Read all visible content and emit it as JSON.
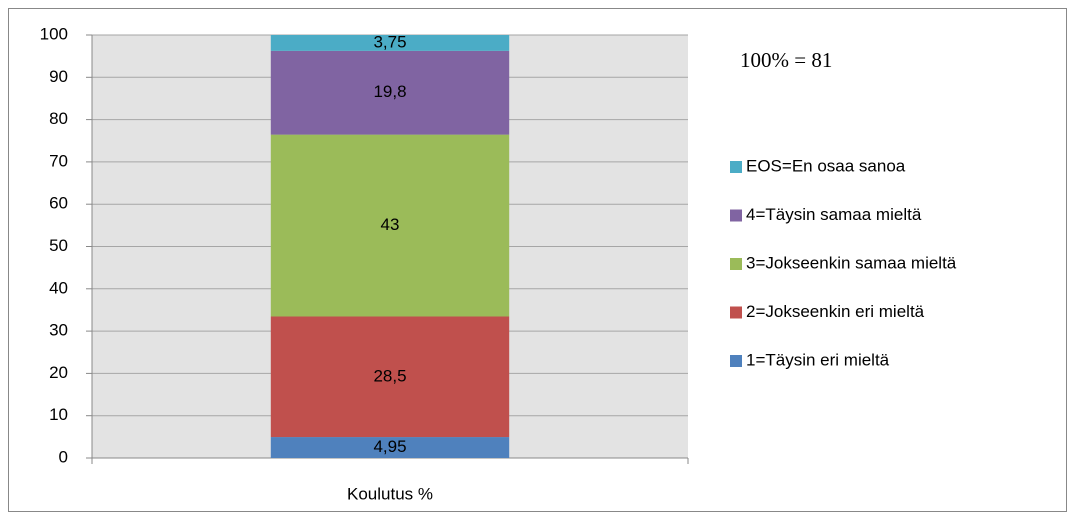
{
  "chart_data": {
    "type": "stacked_bar",
    "categories": [
      "Koulutus %"
    ],
    "series": [
      {
        "name": "1=Täysin eri mieltä",
        "color": "#4f81bd",
        "values": [
          4.95
        ],
        "value_labels": [
          "4,95"
        ]
      },
      {
        "name": "2=Jokseenkin eri mieltä",
        "color": "#c0504d",
        "values": [
          28.5
        ],
        "value_labels": [
          "28,5"
        ]
      },
      {
        "name": "3=Jokseenkin samaa mieltä",
        "color": "#9bbb59",
        "values": [
          43
        ],
        "value_labels": [
          "43"
        ]
      },
      {
        "name": "4=Täysin samaa mieltä",
        "color": "#8064a2",
        "values": [
          19.8
        ],
        "value_labels": [
          "19,8"
        ]
      },
      {
        "name": "EOS=En osaa sanoa",
        "color": "#4bacc6",
        "values": [
          3.75
        ],
        "value_labels": [
          "3,75"
        ]
      }
    ],
    "annotation": "100% = 81",
    "ylim": [
      0,
      100
    ],
    "yticks": [
      0,
      10,
      20,
      30,
      40,
      50,
      60,
      70,
      80,
      90,
      100
    ],
    "grid": true,
    "legend": "right"
  }
}
